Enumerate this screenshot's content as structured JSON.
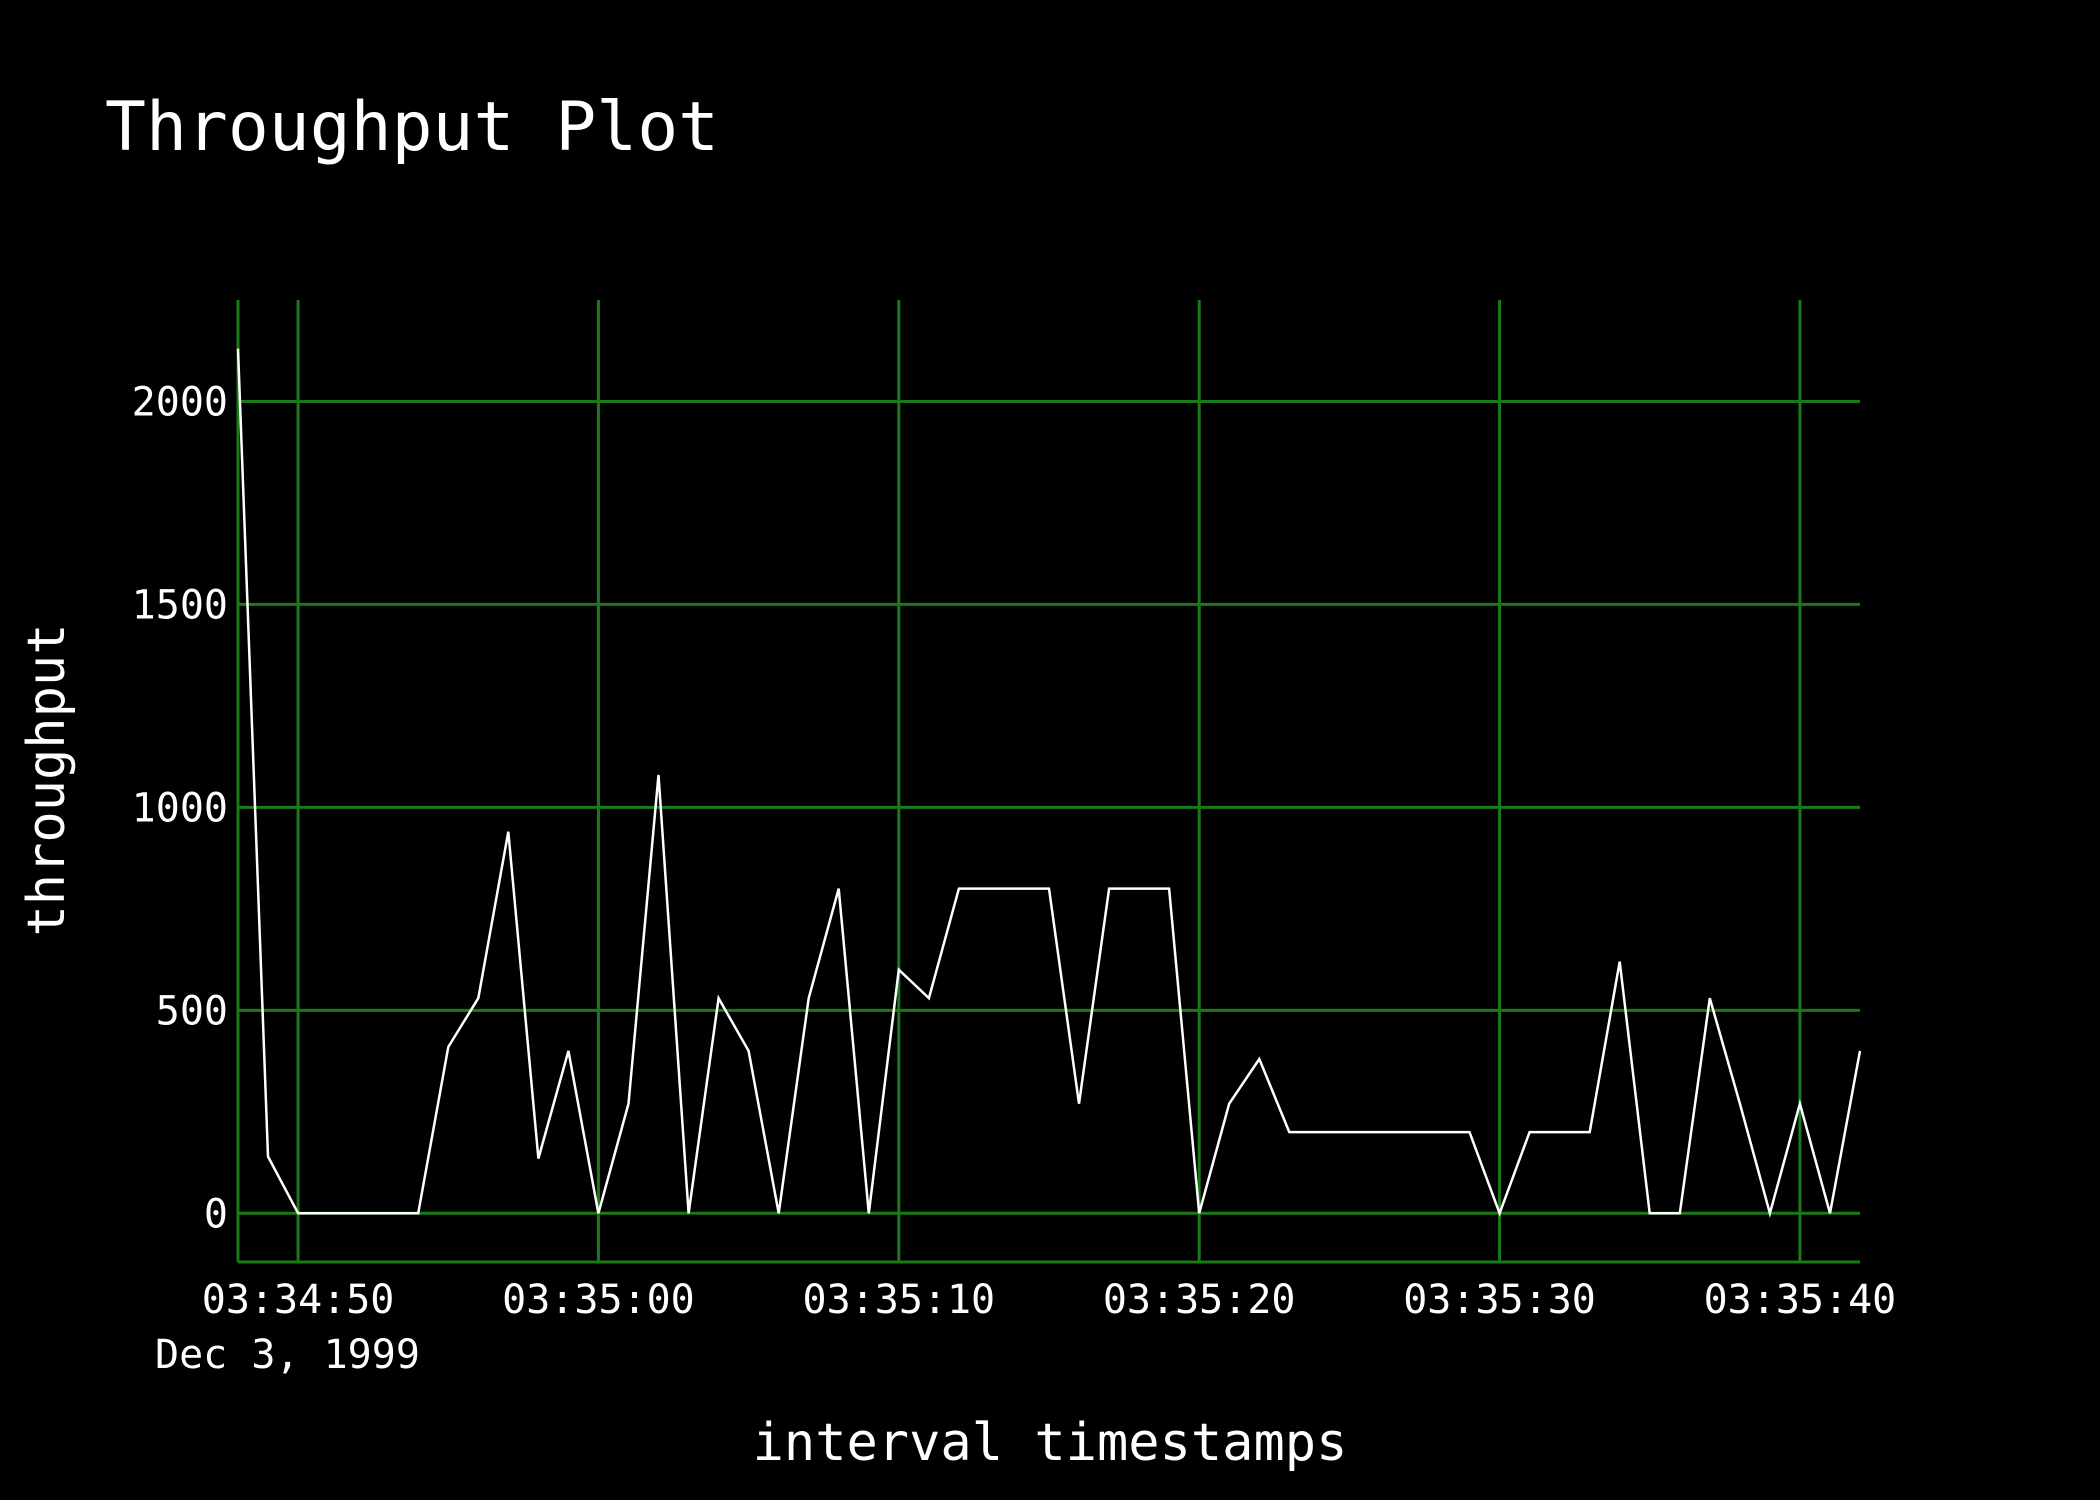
{
  "chart_data": {
    "type": "line",
    "title": "Throughput Plot",
    "xlabel": "interval timestamps",
    "ylabel": "throughput",
    "date_label": "Dec 3, 1999",
    "grid": true,
    "colors": {
      "background": "#000000",
      "grid": "#1a7a1a",
      "line": "#ffffff",
      "text": "#ffffff"
    },
    "ylim": [
      -120,
      2250
    ],
    "xlim": [
      "03:34:48",
      "03:35:42"
    ],
    "y_ticks": [
      0,
      500,
      1000,
      1500,
      2000
    ],
    "x_ticks": [
      "03:34:50",
      "03:35:00",
      "03:35:10",
      "03:35:20",
      "03:35:30",
      "03:35:40"
    ],
    "series": [
      {
        "x": [
          "03:34:48",
          "03:34:49",
          "03:34:50",
          "03:34:51",
          "03:34:52",
          "03:34:53",
          "03:34:54",
          "03:34:55",
          "03:34:56",
          "03:34:57",
          "03:34:58",
          "03:34:59",
          "03:35:00",
          "03:35:01",
          "03:35:02",
          "03:35:03",
          "03:35:04",
          "03:35:05",
          "03:35:06",
          "03:35:07",
          "03:35:08",
          "03:35:09",
          "03:35:10",
          "03:35:11",
          "03:35:12",
          "03:35:13",
          "03:35:14",
          "03:35:15",
          "03:35:16",
          "03:35:17",
          "03:35:18",
          "03:35:19",
          "03:35:20",
          "03:35:21",
          "03:35:22",
          "03:35:23",
          "03:35:24",
          "03:35:25",
          "03:35:26",
          "03:35:27",
          "03:35:28",
          "03:35:29",
          "03:35:30",
          "03:35:31",
          "03:35:32",
          "03:35:33",
          "03:35:34",
          "03:35:35",
          "03:35:36",
          "03:35:37",
          "03:35:38",
          "03:35:39",
          "03:35:40",
          "03:35:41",
          "03:35:42"
        ],
        "values": [
          2130,
          140,
          0,
          0,
          0,
          0,
          0,
          410,
          530,
          940,
          135,
          400,
          0,
          270,
          1080,
          0,
          530,
          400,
          0,
          530,
          800,
          0,
          600,
          530,
          800,
          800,
          800,
          800,
          270,
          800,
          800,
          800,
          0,
          270,
          380,
          200,
          200,
          200,
          200,
          200,
          200,
          200,
          0,
          200,
          200,
          200,
          620,
          0,
          0,
          530,
          270,
          0,
          270,
          0,
          400
        ]
      }
    ]
  }
}
